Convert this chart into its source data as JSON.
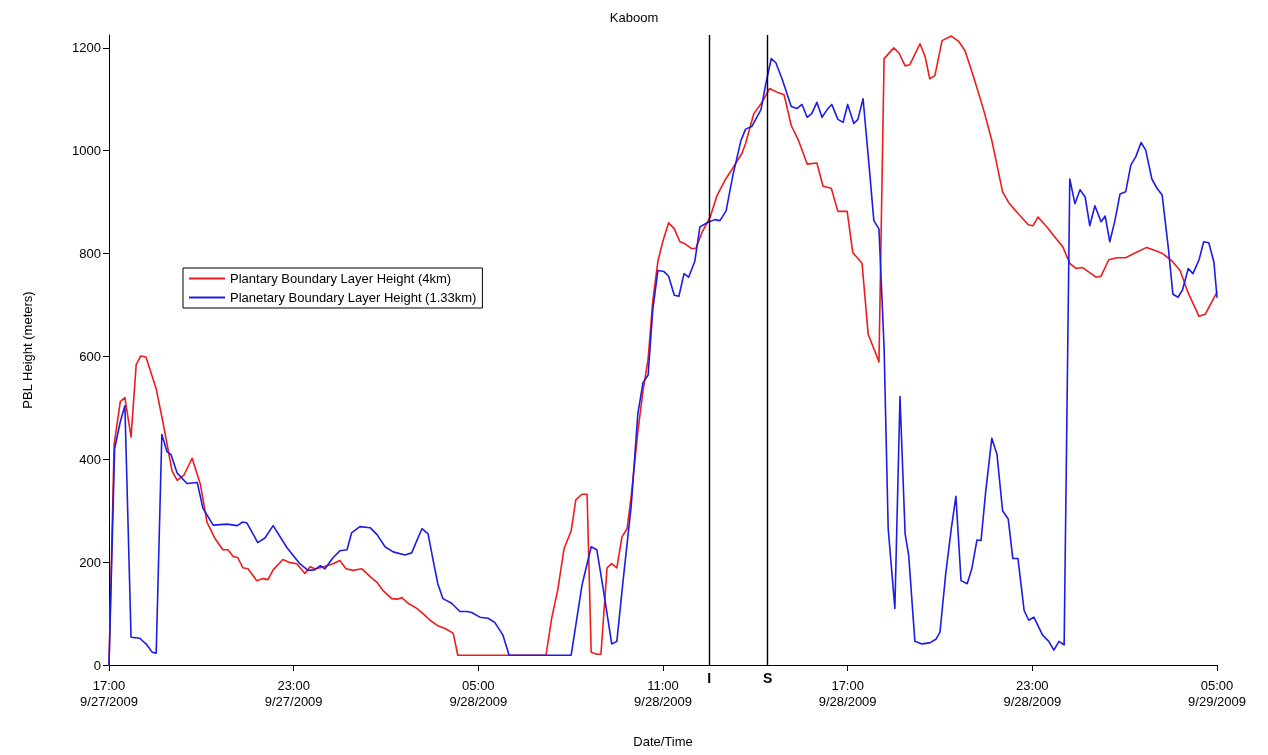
{
  "chart_data": {
    "type": "line",
    "title": "Kaboom",
    "xlabel": "Date/Time",
    "ylabel": "PBL Height (meters)",
    "xlim": [
      "2009-09-27T17:00",
      "2009-09-29T05:00"
    ],
    "ylim": [
      0,
      1225
    ],
    "xticks": [
      {
        "value": "2009-09-27T17:00",
        "label": "17:00\n9/27/2009"
      },
      {
        "value": "2009-09-27T23:00",
        "label": "23:00\n9/27/2009"
      },
      {
        "value": "2009-09-28T05:00",
        "label": "05:00\n9/28/2009"
      },
      {
        "value": "2009-09-28T11:00",
        "label": "11:00\n9/28/2009"
      },
      {
        "value": "2009-09-28T17:00",
        "label": "17:00\n9/28/2009"
      },
      {
        "value": "2009-09-28T23:00",
        "label": "23:00\n9/28/2009"
      },
      {
        "value": "2009-09-29T05:00",
        "label": "05:00\n9/29/2009"
      }
    ],
    "yticks": [
      0,
      200,
      400,
      600,
      800,
      1000,
      1200
    ],
    "grid": false,
    "legend": "left",
    "marker": "none",
    "line_style": "solid",
    "ref_lines": [
      {
        "axis": "x",
        "value": "2009-09-28T12:30",
        "label": "I",
        "color": "#000000"
      },
      {
        "axis": "x",
        "value": "2009-09-28T14:24",
        "label": "S",
        "color": "#000000"
      }
    ],
    "series": [
      {
        "name": "Plantary Boundary Layer Height (4km)",
        "color": "#ee1c1c",
        "x": [
          "2009-09-27T17:00",
          "2009-09-27T17:10",
          "2009-09-27T17:22",
          "2009-09-27T17:31",
          "2009-09-27T17:43",
          "2009-09-27T17:53",
          "2009-09-27T18:02",
          "2009-09-27T18:12",
          "2009-09-27T18:32",
          "2009-09-27T18:45",
          "2009-09-27T19:03",
          "2009-09-27T19:13",
          "2009-09-27T19:26",
          "2009-09-27T19:42",
          "2009-09-27T19:58",
          "2009-09-27T20:11",
          "2009-09-27T20:26",
          "2009-09-27T20:42",
          "2009-09-27T20:52",
          "2009-09-27T21:02",
          "2009-09-27T21:11",
          "2009-09-27T21:21",
          "2009-09-27T21:31",
          "2009-09-27T21:48",
          "2009-09-27T22:00",
          "2009-09-27T22:10",
          "2009-09-27T22:20",
          "2009-09-27T22:39",
          "2009-09-27T22:53",
          "2009-09-27T23:06",
          "2009-09-27T23:22",
          "2009-09-27T23:32",
          "2009-09-27T23:41",
          "2009-09-27T23:52",
          "2009-09-28T00:05",
          "2009-09-28T00:17",
          "2009-09-28T00:30",
          "2009-09-28T00:42",
          "2009-09-28T00:56",
          "2009-09-28T01:13",
          "2009-09-28T01:29",
          "2009-09-28T01:43",
          "2009-09-28T01:54",
          "2009-09-28T02:11",
          "2009-09-28T02:22",
          "2009-09-28T02:31",
          "2009-09-28T02:43",
          "2009-09-28T03:00",
          "2009-09-28T03:12",
          "2009-09-28T03:26",
          "2009-09-28T03:40",
          "2009-09-28T03:55",
          "2009-09-28T04:11",
          "2009-09-28T04:20",
          "2009-09-28T07:12",
          "2009-09-28T07:23",
          "2009-09-28T07:35",
          "2009-09-28T07:47",
          "2009-09-28T08:01",
          "2009-09-28T08:10",
          "2009-09-28T08:22",
          "2009-09-28T08:32",
          "2009-09-28T08:40",
          "2009-09-28T08:51",
          "2009-09-28T08:59",
          "2009-09-28T09:11",
          "2009-09-28T09:20",
          "2009-09-28T09:30",
          "2009-09-28T09:40",
          "2009-09-28T09:50",
          "2009-09-28T09:58",
          "2009-09-28T10:11",
          "2009-09-28T10:21",
          "2009-09-28T10:31",
          "2009-09-28T10:40",
          "2009-09-28T10:50",
          "2009-09-28T11:00",
          "2009-09-28T11:11",
          "2009-09-28T11:22",
          "2009-09-28T11:33",
          "2009-09-28T11:43",
          "2009-09-28T11:55",
          "2009-09-28T12:04",
          "2009-09-28T12:16",
          "2009-09-28T12:32",
          "2009-09-28T12:45",
          "2009-09-28T13:01",
          "2009-09-28T13:16",
          "2009-09-28T13:34",
          "2009-09-28T13:41",
          "2009-09-28T13:57",
          "2009-09-28T14:13",
          "2009-09-28T14:28",
          "2009-09-28T14:44",
          "2009-09-28T14:56",
          "2009-09-28T15:10",
          "2009-09-28T15:25",
          "2009-09-28T15:41",
          "2009-09-28T16:00",
          "2009-09-28T16:12",
          "2009-09-28T16:28",
          "2009-09-28T16:41",
          "2009-09-28T16:59",
          "2009-09-28T17:10",
          "2009-09-28T17:28",
          "2009-09-28T17:40",
          "2009-09-28T17:59",
          "2009-09-28T18:01",
          "2009-09-28T18:11",
          "2009-09-28T18:30",
          "2009-09-28T18:40",
          "2009-09-28T18:52",
          "2009-09-28T19:01",
          "2009-09-28T19:21",
          "2009-09-28T19:31",
          "2009-09-28T19:40",
          "2009-09-28T19:50",
          "2009-09-28T20:04",
          "2009-09-28T20:22",
          "2009-09-28T20:37",
          "2009-09-28T20:49",
          "2009-09-28T21:06",
          "2009-09-28T21:26",
          "2009-09-28T21:41",
          "2009-09-28T22:02",
          "2009-09-28T22:14",
          "2009-09-28T22:26",
          "2009-09-28T22:52",
          "2009-09-28T23:01",
          "2009-09-28T23:11",
          "2009-09-28T23:28",
          "2009-09-28T23:48",
          "2009-09-28T23:59",
          "2009-09-29T00:13",
          "2009-09-29T00:25",
          "2009-09-29T00:37",
          "2009-09-29T00:52",
          "2009-09-29T01:04",
          "2009-09-29T01:14",
          "2009-09-29T01:29",
          "2009-09-29T01:45",
          "2009-09-29T02:02",
          "2009-09-29T02:18",
          "2009-09-29T02:43",
          "2009-09-29T02:59",
          "2009-09-29T03:14",
          "2009-09-29T03:32",
          "2009-09-29T03:48",
          "2009-09-29T04:04",
          "2009-09-29T04:25",
          "2009-09-29T04:37",
          "2009-09-29T05:00"
        ],
        "values": [
          0,
          429,
          512,
          520,
          443,
          584,
          601,
          599,
          537,
          473,
          377,
          359,
          369,
          402,
          352,
          278,
          247,
          224,
          224,
          211,
          209,
          189,
          187,
          164,
          168,
          166,
          185,
          205,
          199,
          197,
          178,
          191,
          187,
          189,
          193,
          197,
          203,
          187,
          184,
          187,
          172,
          160,
          145,
          129,
          128,
          131,
          120,
          110,
          100,
          87,
          77,
          71,
          62,
          19,
          19,
          91,
          147,
          226,
          261,
          321,
          332,
          332,
          25,
          21,
          21,
          189,
          197,
          189,
          249,
          265,
          328,
          454,
          533,
          595,
          707,
          785,
          825,
          860,
          848,
          823,
          819,
          810,
          810,
          841,
          871,
          912,
          943,
          966,
          995,
          1014,
          1072,
          1094,
          1121,
          1113,
          1109,
          1049,
          1018,
          974,
          976,
          931,
          927,
          882,
          882,
          802,
          781,
          643,
          595,
          589,
          1179,
          1200,
          1190,
          1165,
          1167,
          1208,
          1183,
          1140,
          1146,
          1214,
          1223,
          1212,
          1194,
          1142,
          1076,
          1020,
          920,
          899,
          885,
          856,
          854,
          871,
          852,
          827,
          814,
          781,
          771,
          773,
          763,
          754,
          756,
          788,
          792,
          792,
          800,
          812,
          806,
          800,
          786,
          767,
          723,
          678,
          682,
          725
        ]
      },
      {
        "name": "Planetary Boundary Layer Height (1.33km)",
        "color": "#1c1ce6",
        "x": [
          "2009-09-27T17:00",
          "2009-09-27T17:11",
          "2009-09-27T17:22",
          "2009-09-27T17:31",
          "2009-09-27T17:43",
          "2009-09-27T18:00",
          "2009-09-27T18:14",
          "2009-09-27T18:24",
          "2009-09-27T18:32",
          "2009-09-27T18:43",
          "2009-09-27T18:53",
          "2009-09-27T19:01",
          "2009-09-27T19:13",
          "2009-09-27T19:32",
          "2009-09-27T19:52",
          "2009-09-27T20:03",
          "2009-09-27T20:23",
          "2009-09-27T20:50",
          "2009-09-27T21:10",
          "2009-09-27T21:21",
          "2009-09-27T21:29",
          "2009-09-27T21:50",
          "2009-09-27T22:04",
          "2009-09-27T22:20",
          "2009-09-27T22:47",
          "2009-09-27T23:12",
          "2009-09-27T23:28",
          "2009-09-27T23:41",
          "2009-09-27T23:52",
          "2009-09-28T00:01",
          "2009-09-28T00:17",
          "2009-09-28T00:30",
          "2009-09-28T00:44",
          "2009-09-28T00:53",
          "2009-09-28T01:09",
          "2009-09-28T01:29",
          "2009-09-28T01:43",
          "2009-09-28T01:58",
          "2009-09-28T02:14",
          "2009-09-28T02:37",
          "2009-09-28T02:50",
          "2009-09-28T03:10",
          "2009-09-28T03:22",
          "2009-09-28T03:32",
          "2009-09-28T03:41",
          "2009-09-28T03:51",
          "2009-09-28T04:08",
          "2009-09-28T04:24",
          "2009-09-28T04:38",
          "2009-09-28T04:47",
          "2009-09-28T05:03",
          "2009-09-28T05:19",
          "2009-09-28T05:32",
          "2009-09-28T05:48",
          "2009-09-28T06:00",
          "2009-09-28T08:01",
          "2009-09-28T08:22",
          "2009-09-28T08:40",
          "2009-09-28T08:51",
          "2009-09-28T09:03",
          "2009-09-28T09:20",
          "2009-09-28T09:30",
          "2009-09-28T09:42",
          "2009-09-28T09:58",
          "2009-09-28T10:11",
          "2009-09-28T10:21",
          "2009-09-28T10:31",
          "2009-09-28T10:40",
          "2009-09-28T10:50",
          "2009-09-28T11:02",
          "2009-09-28T11:11",
          "2009-09-28T11:22",
          "2009-09-28T11:31",
          "2009-09-28T11:41",
          "2009-09-28T11:50",
          "2009-09-28T12:02",
          "2009-09-28T12:12",
          "2009-09-28T12:26",
          "2009-09-28T12:41",
          "2009-09-28T12:51",
          "2009-09-28T13:03",
          "2009-09-28T13:16",
          "2009-09-28T13:32",
          "2009-09-28T13:41",
          "2009-09-28T13:53",
          "2009-09-28T14:11",
          "2009-09-28T14:20",
          "2009-09-28T14:31",
          "2009-09-28T14:40",
          "2009-09-28T14:52",
          "2009-09-28T15:10",
          "2009-09-28T15:21",
          "2009-09-28T15:31",
          "2009-09-28T15:41",
          "2009-09-28T15:50",
          "2009-09-28T16:00",
          "2009-09-28T16:10",
          "2009-09-28T16:20",
          "2009-09-28T16:29",
          "2009-09-28T16:41",
          "2009-09-28T16:51",
          "2009-09-28T17:00",
          "2009-09-28T17:12",
          "2009-09-28T17:20",
          "2009-09-28T17:30",
          "2009-09-28T17:43",
          "2009-09-28T17:51",
          "2009-09-28T18:01",
          "2009-09-28T18:11",
          "2009-09-28T18:19",
          "2009-09-28T18:32",
          "2009-09-28T18:42",
          "2009-09-28T18:52",
          "2009-09-28T18:59",
          "2009-09-28T19:11",
          "2009-09-28T19:25",
          "2009-09-28T19:40",
          "2009-09-28T19:52",
          "2009-09-28T20:00",
          "2009-09-28T20:11",
          "2009-09-28T20:22",
          "2009-09-28T20:31",
          "2009-09-28T20:41",
          "2009-09-28T20:53",
          "2009-09-28T21:02",
          "2009-09-28T21:12",
          "2009-09-28T21:20",
          "2009-09-28T21:29",
          "2009-09-28T21:41",
          "2009-09-28T21:51",
          "2009-09-28T22:02",
          "2009-09-28T22:13",
          "2009-09-28T22:22",
          "2009-09-28T22:32",
          "2009-09-28T22:44",
          "2009-09-28T22:53",
          "2009-09-28T23:03",
          "2009-09-28T23:20",
          "2009-09-28T23:32",
          "2009-09-28T23:42",
          "2009-09-28T23:52",
          "2009-09-29T00:02",
          "2009-09-29T00:13",
          "2009-09-29T00:23",
          "2009-09-29T00:33",
          "2009-09-29T00:43",
          "2009-09-29T00:52",
          "2009-09-29T01:02",
          "2009-09-29T01:14",
          "2009-09-29T01:22",
          "2009-09-29T01:31",
          "2009-09-29T01:41",
          "2009-09-29T01:51",
          "2009-09-29T02:02",
          "2009-09-29T02:12",
          "2009-09-29T02:22",
          "2009-09-29T02:32",
          "2009-09-29T02:41",
          "2009-09-29T02:53",
          "2009-09-29T03:03",
          "2009-09-29T03:13",
          "2009-09-29T03:25",
          "2009-09-29T03:34",
          "2009-09-29T03:44",
          "2009-09-29T03:53",
          "2009-09-29T04:04",
          "2009-09-29T04:13",
          "2009-09-29T04:25",
          "2009-09-29T04:34",
          "2009-09-29T04:44",
          "2009-09-29T04:54",
          "2009-09-29T05:00"
        ],
        "values": [
          0,
          421,
          473,
          504,
          54,
          52,
          39,
          25,
          23,
          448,
          415,
          409,
          373,
          353,
          355,
          305,
          272,
          274,
          271,
          278,
          276,
          238,
          247,
          271,
          228,
          197,
          184,
          185,
          193,
          187,
          209,
          222,
          224,
          257,
          269,
          267,
          253,
          230,
          220,
          214,
          218,
          265,
          255,
          203,
          158,
          129,
          120,
          104,
          104,
          102,
          93,
          91,
          83,
          58,
          19,
          19,
          155,
          230,
          224,
          151,
          41,
          46,
          162,
          309,
          489,
          549,
          564,
          690,
          767,
          765,
          756,
          719,
          717,
          761,
          754,
          785,
          852,
          860,
          866,
          864,
          883,
          951,
          1020,
          1042,
          1047,
          1080,
          1128,
          1179,
          1171,
          1140,
          1086,
          1082,
          1090,
          1065,
          1072,
          1094,
          1065,
          1080,
          1090,
          1061,
          1055,
          1090,
          1053,
          1061,
          1101,
          957,
          864,
          848,
          618,
          265,
          110,
          522,
          255,
          213,
          46,
          41,
          43,
          50,
          64,
          176,
          265,
          328,
          164,
          158,
          187,
          243,
          242,
          336,
          441,
          410,
          300,
          284,
          207,
          207,
          106,
          87,
          93,
          58,
          46,
          29,
          46,
          39,
          945,
          897,
          924,
          910,
          854,
          893,
          862,
          873,
          823,
          864,
          916,
          920,
          972,
          989,
          1016,
          1001,
          945,
          927,
          914,
          812,
          721,
          715,
          730,
          771,
          761,
          788,
          823,
          821,
          783,
          715
        ]
      }
    ]
  }
}
